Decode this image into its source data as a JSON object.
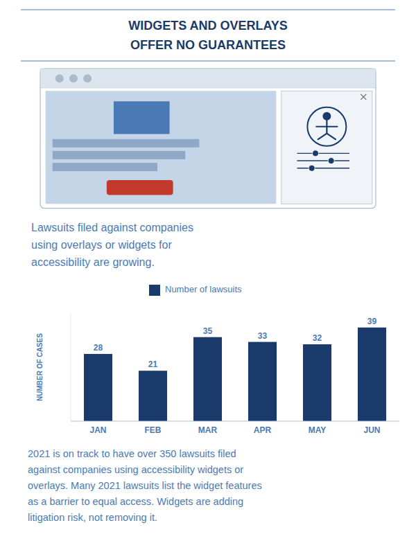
{
  "chart_data": {
    "type": "bar",
    "title": "WIDGETS AND OVERLAYS",
    "subtitle": "OFFER NO GUARANTEES",
    "annotations": [
      "Lawsuits filed against companies\nusing overlays or widgets for\naccessibility are growing.",
      "2021 is on track to have over 350 lawsuits filed\nagainst companies using accessibility widgets or\noverlays. Many 2021 lawsuits list the widget features\nas a barrier to equal access. Widgets are adding\nlitigation risk, not removing it."
    ],
    "categories": [
      "JAN",
      "FEB",
      "MAR",
      "APR",
      "MAY",
      "JUN"
    ],
    "series": [
      {
        "name": "Number of lawsuits",
        "color": "#1a3a6b",
        "values": [
          28,
          21,
          35,
          33,
          32,
          39
        ]
      }
    ],
    "y_label": "NUMBER OF CASES",
    "ylim": [
      0,
      45
    ],
    "data_labels": true,
    "tick_labels": "x",
    "grid": false,
    "legend": "top"
  }
}
